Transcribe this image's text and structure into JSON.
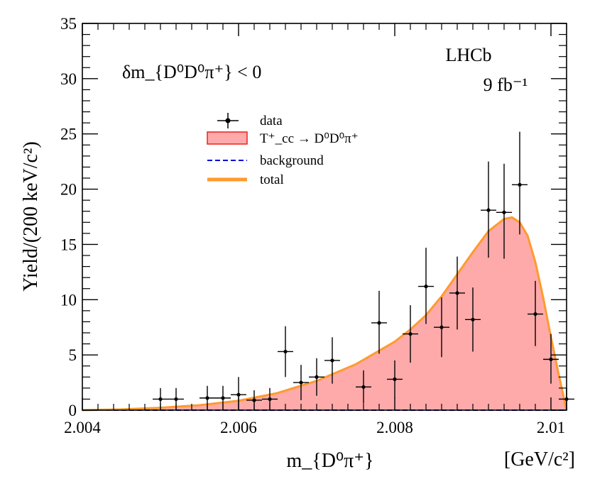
{
  "chart_data": {
    "type": "scatter",
    "experiment": "LHCb",
    "luminosity": "9 fb⁻¹",
    "selection": "δm_{D⁰D⁰π⁺} < 0",
    "xlabel": "m_{D⁰π⁺}",
    "xunit": "[GeV/c²]",
    "ylabel": "Yield/(200 keV/c²)",
    "xlim": [
      2.004,
      2.0102
    ],
    "ylim": [
      0,
      35
    ],
    "x_ticks": [
      2.004,
      2.006,
      2.008,
      2.01
    ],
    "x_tick_labels": [
      "2.004",
      "2.006",
      "2.008",
      "2.01"
    ],
    "y_ticks": [
      0,
      5,
      10,
      15,
      20,
      25,
      30,
      35
    ],
    "y_tick_labels": [
      "0",
      "5",
      "10",
      "15",
      "20",
      "25",
      "30",
      "35"
    ],
    "legend": [
      {
        "key": "data",
        "label": "data",
        "style": "errorbar"
      },
      {
        "key": "signal",
        "label": "T⁺_cc → D⁰D⁰π⁺",
        "style": "filled"
      },
      {
        "key": "background",
        "label": "background",
        "style": "dashed"
      },
      {
        "key": "total",
        "label": "total",
        "style": "solid"
      }
    ],
    "colors": {
      "signal_fill": "#ffaaaa",
      "signal_edge": "#e8231f",
      "background": "#0000dd",
      "total": "#ff9a2e",
      "data": "#000000"
    },
    "series": [
      {
        "name": "data",
        "bin_width": 0.0002,
        "points": [
          {
            "x": 2.005,
            "y": 1.0,
            "err_lo": 1.0,
            "err_hi": 1.0
          },
          {
            "x": 2.0052,
            "y": 1.0,
            "err_lo": 1.0,
            "err_hi": 1.0
          },
          {
            "x": 2.0056,
            "y": 1.1,
            "err_lo": 1.1,
            "err_hi": 1.1
          },
          {
            "x": 2.0058,
            "y": 1.1,
            "err_lo": 1.1,
            "err_hi": 1.1
          },
          {
            "x": 2.006,
            "y": 1.4,
            "err_lo": 1.4,
            "err_hi": 1.6
          },
          {
            "x": 2.0062,
            "y": 0.9,
            "err_lo": 0.9,
            "err_hi": 0.9
          },
          {
            "x": 2.0064,
            "y": 1.0,
            "err_lo": 1.0,
            "err_hi": 1.0
          },
          {
            "x": 2.0066,
            "y": 5.3,
            "err_lo": 2.3,
            "err_hi": 2.3
          },
          {
            "x": 2.0068,
            "y": 2.5,
            "err_lo": 1.6,
            "err_hi": 1.6
          },
          {
            "x": 2.007,
            "y": 3.0,
            "err_lo": 1.7,
            "err_hi": 1.7
          },
          {
            "x": 2.0072,
            "y": 4.5,
            "err_lo": 2.1,
            "err_hi": 2.1
          },
          {
            "x": 2.0076,
            "y": 2.1,
            "err_lo": 1.5,
            "err_hi": 1.5
          },
          {
            "x": 2.0078,
            "y": 7.9,
            "err_lo": 2.8,
            "err_hi": 2.9
          },
          {
            "x": 2.008,
            "y": 2.8,
            "err_lo": 1.7,
            "err_hi": 1.7
          },
          {
            "x": 2.0082,
            "y": 6.9,
            "err_lo": 2.6,
            "err_hi": 2.6
          },
          {
            "x": 2.0084,
            "y": 11.2,
            "err_lo": 3.4,
            "err_hi": 3.5
          },
          {
            "x": 2.0086,
            "y": 7.5,
            "err_lo": 2.7,
            "err_hi": 2.7
          },
          {
            "x": 2.0088,
            "y": 10.6,
            "err_lo": 3.3,
            "err_hi": 3.3
          },
          {
            "x": 2.009,
            "y": 8.2,
            "err_lo": 2.9,
            "err_hi": 2.9
          },
          {
            "x": 2.0092,
            "y": 18.1,
            "err_lo": 4.3,
            "err_hi": 4.4
          },
          {
            "x": 2.0094,
            "y": 17.9,
            "err_lo": 4.2,
            "err_hi": 4.4
          },
          {
            "x": 2.0096,
            "y": 20.4,
            "err_lo": 4.5,
            "err_hi": 4.8
          },
          {
            "x": 2.0098,
            "y": 8.7,
            "err_lo": 2.9,
            "err_hi": 3.0
          },
          {
            "x": 2.01,
            "y": 4.6,
            "err_lo": 2.2,
            "err_hi": 2.3
          },
          {
            "x": 2.0102,
            "y": 1.0,
            "err_lo": 1.0,
            "err_hi": 1.0
          }
        ]
      },
      {
        "name": "total",
        "curve": [
          [
            2.004,
            0.0
          ],
          [
            2.0045,
            0.07
          ],
          [
            2.005,
            0.22
          ],
          [
            2.0055,
            0.45
          ],
          [
            2.006,
            0.85
          ],
          [
            2.0065,
            1.55
          ],
          [
            2.007,
            2.65
          ],
          [
            2.0075,
            4.15
          ],
          [
            2.008,
            6.2
          ],
          [
            2.0082,
            7.3
          ],
          [
            2.0084,
            8.6
          ],
          [
            2.0086,
            10.3
          ],
          [
            2.0088,
            12.3
          ],
          [
            2.009,
            14.3
          ],
          [
            2.0092,
            16.2
          ],
          [
            2.0094,
            17.3
          ],
          [
            2.0095,
            17.45
          ],
          [
            2.0096,
            17.0
          ],
          [
            2.0097,
            15.8
          ],
          [
            2.0098,
            13.4
          ],
          [
            2.0099,
            10.2
          ],
          [
            2.01,
            6.6
          ],
          [
            2.0101,
            3.2
          ],
          [
            2.0102,
            0.0
          ]
        ]
      },
      {
        "name": "background",
        "curve": [
          [
            2.004,
            0.0
          ],
          [
            2.0102,
            0.0
          ]
        ]
      }
    ]
  }
}
